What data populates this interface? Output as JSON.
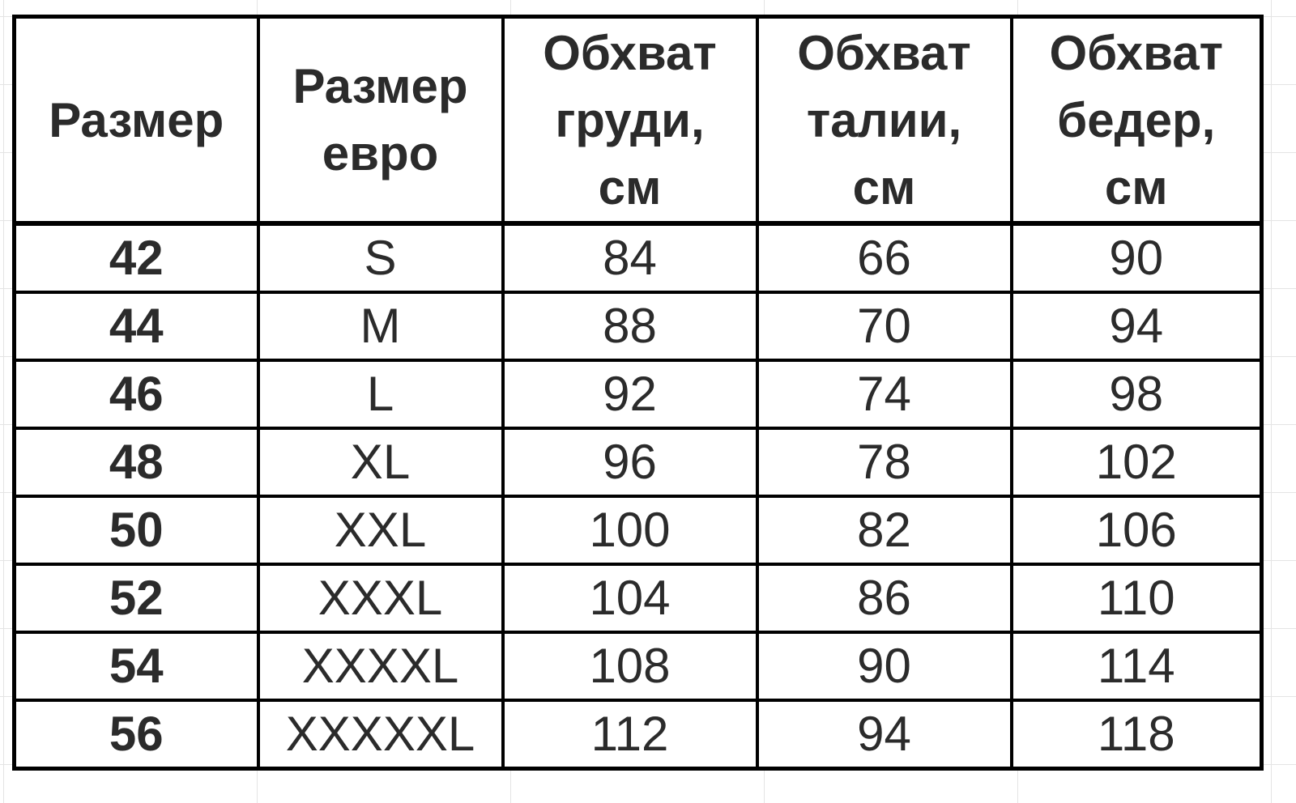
{
  "table": {
    "headers": [
      [
        "Размер"
      ],
      [
        "Размер",
        "евро"
      ],
      [
        "Обхват",
        "груди,",
        "см"
      ],
      [
        "Обхват",
        "талии,",
        "см"
      ],
      [
        "Обхват",
        "бедер,",
        "см"
      ]
    ],
    "rows": [
      [
        "42",
        "S",
        "84",
        "66",
        "90"
      ],
      [
        "44",
        "M",
        "88",
        "70",
        "94"
      ],
      [
        "46",
        "L",
        "92",
        "74",
        "98"
      ],
      [
        "48",
        "XL",
        "96",
        "78",
        "102"
      ],
      [
        "50",
        "XXL",
        "100",
        "82",
        "106"
      ],
      [
        "52",
        "XXXL",
        "104",
        "86",
        "110"
      ],
      [
        "54",
        "XXXXL",
        "108",
        "90",
        "114"
      ],
      [
        "56",
        "XXXXXL",
        "112",
        "94",
        "118"
      ]
    ]
  }
}
